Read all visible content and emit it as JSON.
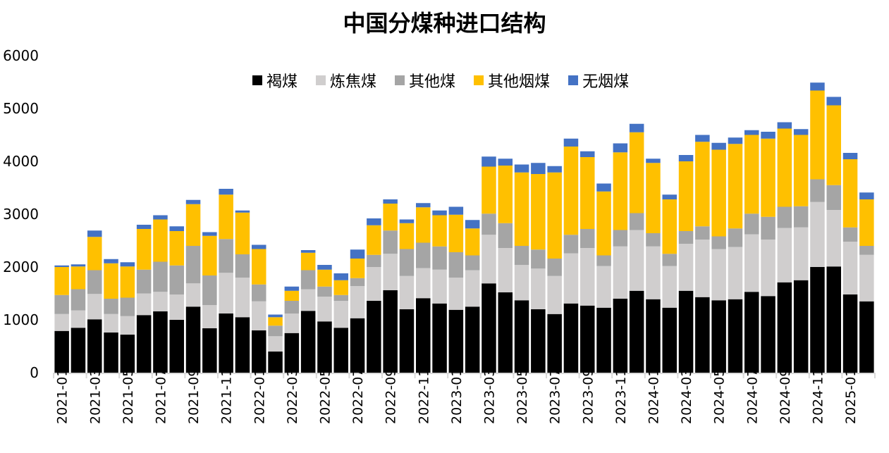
{
  "chart_data": {
    "type": "bar",
    "stacked": true,
    "title": "中国分煤种进口结构",
    "xlabel": "",
    "ylabel": "",
    "ylim": [
      0,
      6000
    ],
    "yticks": [
      0,
      1000,
      2000,
      3000,
      4000,
      5000,
      6000
    ],
    "legend_position": "top-center",
    "grid": false,
    "categories": [
      "2021-01",
      "2021-02",
      "2021-03",
      "2021-04",
      "2021-05",
      "2021-06",
      "2021-07",
      "2021-08",
      "2021-09",
      "2021-10",
      "2021-11",
      "2021-12",
      "2022-01",
      "2022-02",
      "2022-03",
      "2022-04",
      "2022-05",
      "2022-06",
      "2022-07",
      "2022-08",
      "2022-09",
      "2022-10",
      "2022-11",
      "2022-12",
      "2023-01",
      "2023-02",
      "2023-03",
      "2023-04",
      "2023-05",
      "2023-06",
      "2023-07",
      "2023-08",
      "2023-09",
      "2023-10",
      "2023-11",
      "2023-12",
      "2024-01",
      "2024-02",
      "2024-03",
      "2024-04",
      "2024-05",
      "2024-06",
      "2024-07",
      "2024-08",
      "2024-09",
      "2024-10",
      "2024-11",
      "2024-12",
      "2025-01",
      "2025-02"
    ],
    "xtick_labels": [
      "2021-01",
      "2021-03",
      "2021-05",
      "2021-07",
      "2021-09",
      "2021-11",
      "2022-01",
      "2022-03",
      "2022-05",
      "2022-07",
      "2022-09",
      "2022-11",
      "2023-01",
      "2023-03",
      "2023-05",
      "2023-07",
      "2023-09",
      "2023-11",
      "2024-01",
      "2024-03",
      "2024-05",
      "2024-07",
      "2024-09",
      "2024-11",
      "2025-01"
    ],
    "series": [
      {
        "name": "褐煤",
        "color": "#000000",
        "values": [
          790,
          850,
          1010,
          760,
          720,
          1090,
          1160,
          1000,
          1250,
          840,
          1120,
          1050,
          800,
          400,
          750,
          1170,
          970,
          850,
          1030,
          1360,
          1560,
          1200,
          1410,
          1310,
          1190,
          1250,
          1690,
          1520,
          1370,
          1200,
          1110,
          1310,
          1270,
          1230,
          1400,
          1550,
          1390,
          1230,
          1550,
          1430,
          1370,
          1390,
          1530,
          1450,
          1710,
          1750,
          2000,
          2010,
          1480,
          1350
        ]
      },
      {
        "name": "炼焦煤",
        "color": "#D0CECE",
        "values": [
          320,
          330,
          480,
          350,
          350,
          410,
          370,
          480,
          440,
          440,
          770,
          750,
          550,
          290,
          370,
          410,
          470,
          510,
          610,
          640,
          690,
          630,
          570,
          640,
          610,
          690,
          920,
          840,
          670,
          770,
          720,
          950,
          1090,
          790,
          990,
          1150,
          1000,
          790,
          890,
          1090,
          970,
          990,
          1090,
          1070,
          1030,
          1000,
          1230,
          1070,
          1000,
          880
        ]
      },
      {
        "name": "其他煤",
        "color": "#A5A5A5",
        "values": [
          360,
          400,
          450,
          290,
          350,
          450,
          570,
          550,
          710,
          560,
          640,
          440,
          320,
          200,
          240,
          360,
          190,
          110,
          150,
          230,
          440,
          510,
          480,
          440,
          480,
          280,
          400,
          470,
          360,
          360,
          330,
          350,
          360,
          200,
          310,
          320,
          250,
          230,
          240,
          250,
          240,
          350,
          390,
          430,
          400,
          400,
          430,
          470,
          270,
          170
        ]
      },
      {
        "name": "其他烟煤",
        "color": "#FFC000",
        "values": [
          530,
          430,
          630,
          670,
          590,
          770,
          800,
          650,
          790,
          750,
          840,
          790,
          670,
          160,
          190,
          330,
          320,
          280,
          370,
          560,
          510,
          490,
          670,
          590,
          710,
          510,
          890,
          1090,
          1390,
          1430,
          1630,
          1670,
          1360,
          1210,
          1470,
          1530,
          1330,
          1030,
          1320,
          1600,
          1640,
          1600,
          1490,
          1480,
          1480,
          1350,
          1680,
          1510,
          1290,
          880
        ]
      },
      {
        "name": "无烟煤",
        "color": "#4472C4",
        "values": [
          30,
          40,
          120,
          80,
          80,
          80,
          80,
          90,
          80,
          70,
          110,
          40,
          80,
          50,
          80,
          50,
          90,
          130,
          170,
          130,
          80,
          70,
          80,
          90,
          150,
          160,
          190,
          130,
          150,
          210,
          120,
          150,
          110,
          150,
          170,
          160,
          80,
          90,
          120,
          130,
          130,
          120,
          90,
          130,
          120,
          110,
          150,
          160,
          120,
          130
        ]
      }
    ]
  }
}
